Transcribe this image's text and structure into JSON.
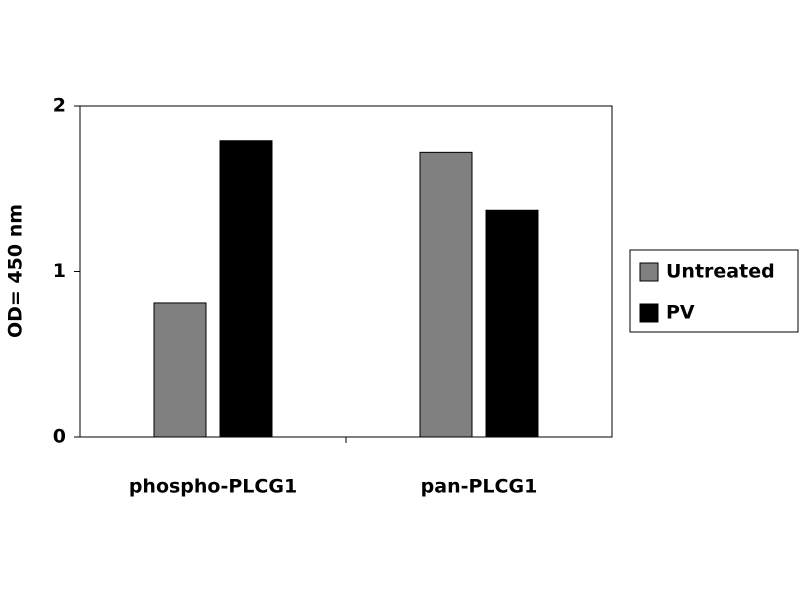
{
  "chart_data": {
    "type": "bar",
    "y_label": "OD= 450 nm",
    "categories": [
      "phospho-PLCG1",
      "pan-PLCG1"
    ],
    "series": [
      {
        "name": "Untreated",
        "color": "#808080",
        "values": [
          0.81,
          1.72
        ]
      },
      {
        "name": "PV",
        "color": "#000000",
        "values": [
          1.79,
          1.37
        ]
      }
    ],
    "ylim": [
      0,
      2
    ],
    "yticks": [
      0,
      1,
      2
    ],
    "grid": false,
    "legend": "right"
  }
}
